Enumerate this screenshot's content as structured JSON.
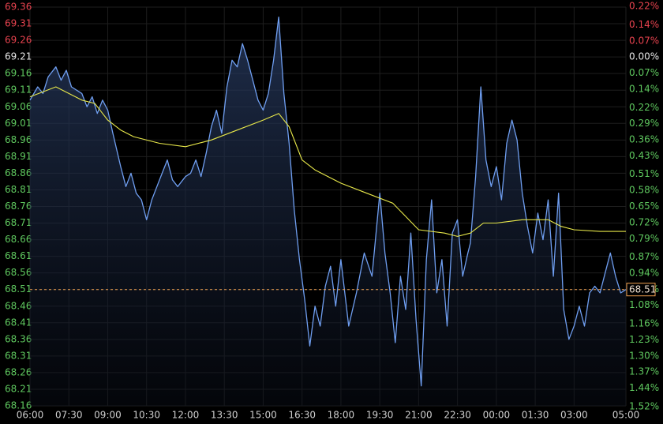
{
  "chart_data": {
    "type": "line",
    "xlim": [
      0,
      23
    ],
    "xticks": [
      {
        "value": 0,
        "label": "06:00"
      },
      {
        "value": 1.5,
        "label": "07:30"
      },
      {
        "value": 3,
        "label": "09:00"
      },
      {
        "value": 4.5,
        "label": "10:30"
      },
      {
        "value": 6,
        "label": "12:00"
      },
      {
        "value": 7.5,
        "label": "13:30"
      },
      {
        "value": 9,
        "label": "15:00"
      },
      {
        "value": 10.5,
        "label": "16:30"
      },
      {
        "value": 12,
        "label": "18:00"
      },
      {
        "value": 13.5,
        "label": "19:30"
      },
      {
        "value": 15,
        "label": "21:00"
      },
      {
        "value": 16.5,
        "label": "22:30"
      },
      {
        "value": 18,
        "label": "00:00"
      },
      {
        "value": 19.5,
        "label": "01:30"
      },
      {
        "value": 21,
        "label": "03:00"
      },
      {
        "value": 23,
        "label": "05:00"
      }
    ],
    "ylim": [
      68.16,
      69.36
    ],
    "yticks": [
      69.36,
      69.31,
      69.26,
      69.21,
      69.16,
      69.11,
      69.06,
      69.01,
      68.96,
      68.91,
      68.86,
      68.81,
      68.76,
      68.71,
      68.66,
      68.61,
      68.56,
      68.51,
      68.46,
      68.41,
      68.36,
      68.31,
      68.26,
      68.21,
      68.16
    ],
    "y2lim": [
      -1.517,
      0.217
    ],
    "y2ticks": [
      {
        "value": 0.22,
        "label": "0.22%"
      },
      {
        "value": 0.14,
        "label": "0.14%"
      },
      {
        "value": 0.07,
        "label": "0.07%"
      },
      {
        "value": 0.0,
        "label": "0.00%"
      },
      {
        "value": -0.07,
        "label": "0.07%"
      },
      {
        "value": -0.14,
        "label": "0.14%"
      },
      {
        "value": -0.22,
        "label": "0.22%"
      },
      {
        "value": -0.29,
        "label": "0.29%"
      },
      {
        "value": -0.36,
        "label": "0.36%"
      },
      {
        "value": -0.43,
        "label": "0.43%"
      },
      {
        "value": -0.51,
        "label": "0.51%"
      },
      {
        "value": -0.58,
        "label": "0.58%"
      },
      {
        "value": -0.65,
        "label": "0.65%"
      },
      {
        "value": -0.72,
        "label": "0.72%"
      },
      {
        "value": -0.79,
        "label": "0.79%"
      },
      {
        "value": -0.87,
        "label": "0.87%"
      },
      {
        "value": -0.94,
        "label": "0.94%"
      },
      {
        "value": -1.01,
        "label": "1.01%"
      },
      {
        "value": -1.08,
        "label": "1.08%"
      },
      {
        "value": -1.16,
        "label": "1.16%"
      },
      {
        "value": -1.23,
        "label": "1.23%"
      },
      {
        "value": -1.3,
        "label": "1.30%"
      },
      {
        "value": -1.37,
        "label": "1.37%"
      },
      {
        "value": -1.44,
        "label": "1.44%"
      },
      {
        "value": -1.52,
        "label": "1.52%"
      }
    ],
    "grid": true,
    "up_color": "#e8434f",
    "down_color": "#5fc85f",
    "last_price": 68.51,
    "last_price_color": "#f0a050",
    "series": [
      {
        "color": "#6f9ef0",
        "fill": true,
        "x": [
          0,
          0.3,
          0.5,
          0.7,
          1.0,
          1.2,
          1.4,
          1.6,
          2.0,
          2.2,
          2.4,
          2.6,
          2.8,
          3.0,
          3.2,
          3.5,
          3.7,
          3.9,
          4.1,
          4.3,
          4.5,
          4.7,
          4.9,
          5.1,
          5.3,
          5.5,
          5.7,
          5.9,
          6.0,
          6.2,
          6.4,
          6.6,
          6.8,
          7.0,
          7.2,
          7.4,
          7.6,
          7.8,
          8.0,
          8.2,
          8.4,
          8.6,
          8.8,
          9.0,
          9.2,
          9.4,
          9.6,
          9.8,
          10.0,
          10.2,
          10.4,
          10.6,
          10.8,
          11.0,
          11.2,
          11.4,
          11.6,
          11.8,
          12.0,
          12.3,
          12.6,
          12.9,
          13.2,
          13.5,
          13.7,
          13.9,
          14.1,
          14.3,
          14.5,
          14.7,
          14.9,
          15.1,
          15.3,
          15.5,
          15.7,
          15.9,
          16.1,
          16.3,
          16.5,
          16.7,
          16.9,
          17.0,
          17.2,
          17.4,
          17.6,
          17.8,
          18.0,
          18.2,
          18.4,
          18.6,
          18.8,
          19.0,
          19.2,
          19.4,
          19.6,
          19.8,
          20.0,
          20.2,
          20.4,
          20.6,
          20.8,
          21.0,
          21.2,
          21.4,
          21.6,
          21.8,
          22.0,
          22.2,
          22.4,
          22.6,
          22.8,
          23.0
        ],
        "values": [
          69.08,
          69.12,
          69.1,
          69.15,
          69.18,
          69.14,
          69.17,
          69.12,
          69.1,
          69.06,
          69.09,
          69.04,
          69.08,
          69.05,
          68.98,
          68.88,
          68.82,
          68.86,
          68.8,
          68.78,
          68.72,
          68.78,
          68.82,
          68.86,
          68.9,
          68.84,
          68.82,
          68.84,
          68.85,
          68.86,
          68.9,
          68.85,
          68.92,
          69.0,
          69.05,
          68.98,
          69.12,
          69.2,
          69.18,
          69.25,
          69.2,
          69.14,
          69.08,
          69.05,
          69.1,
          69.2,
          69.33,
          69.1,
          68.95,
          68.75,
          68.6,
          68.48,
          68.34,
          68.46,
          68.4,
          68.52,
          68.58,
          68.46,
          68.6,
          68.4,
          68.5,
          68.62,
          68.55,
          68.8,
          68.62,
          68.5,
          68.35,
          68.55,
          68.45,
          68.68,
          68.42,
          68.22,
          68.6,
          68.78,
          68.5,
          68.6,
          68.4,
          68.68,
          68.72,
          68.55,
          68.62,
          68.65,
          68.85,
          69.12,
          68.9,
          68.82,
          68.88,
          68.78,
          68.95,
          69.02,
          68.96,
          68.8,
          68.7,
          68.62,
          68.74,
          68.66,
          68.78,
          68.55,
          68.8,
          68.45,
          68.36,
          68.4,
          68.46,
          68.4,
          68.5,
          68.52,
          68.5,
          68.56,
          68.62,
          68.55,
          68.5,
          68.51
        ]
      },
      {
        "color": "#e8e84a",
        "fill": false,
        "x": [
          0,
          1,
          2,
          2.5,
          3,
          3.5,
          4,
          5,
          6,
          7,
          8,
          9,
          9.6,
          10,
          10.5,
          11,
          12,
          13,
          14,
          14.5,
          15,
          16,
          16.5,
          17,
          17.5,
          18,
          19,
          20,
          20.5,
          21,
          22,
          23
        ],
        "values": [
          69.09,
          69.12,
          69.08,
          69.07,
          69.02,
          68.99,
          68.97,
          68.95,
          68.94,
          68.96,
          68.99,
          69.02,
          69.04,
          69.0,
          68.9,
          68.87,
          68.83,
          68.8,
          68.77,
          68.73,
          68.69,
          68.68,
          68.67,
          68.68,
          68.71,
          68.71,
          68.72,
          68.72,
          68.7,
          68.69,
          68.685,
          68.685
        ]
      }
    ]
  }
}
